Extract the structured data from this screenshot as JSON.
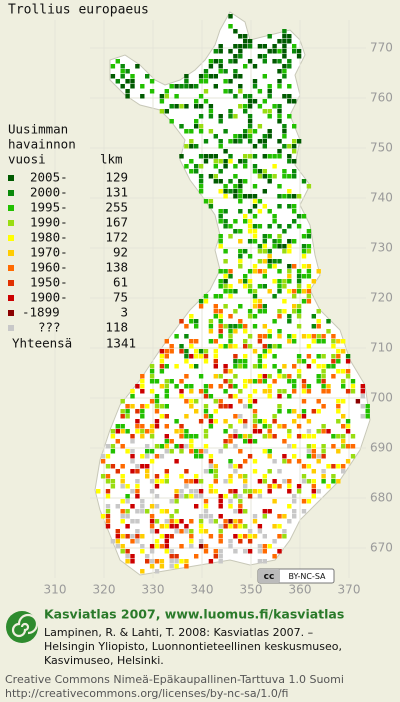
{
  "title": "Trollius europaeus",
  "legend": {
    "heading": [
      "Uusimman",
      "havainnon",
      "vuosi"
    ],
    "count_heading": "lkm",
    "items": [
      {
        "label": "2005-",
        "count": 129,
        "color": "#005a00"
      },
      {
        "label": "2000-",
        "count": 131,
        "color": "#0a8a0a"
      },
      {
        "label": "1995-",
        "count": 255,
        "color": "#22c000"
      },
      {
        "label": "1990-",
        "count": 167,
        "color": "#99dd11"
      },
      {
        "label": "1980-",
        "count": 172,
        "color": "#ffff00"
      },
      {
        "label": "1970-",
        "count": 92,
        "color": "#ffcc00"
      },
      {
        "label": "1960-",
        "count": 138,
        "color": "#ff6a00"
      },
      {
        "label": "1950-",
        "count": 61,
        "color": "#e03000"
      },
      {
        "label": "1900-",
        "count": 75,
        "color": "#cc0000"
      },
      {
        "label": "-1899",
        "count": 3,
        "color": "#8a0000"
      },
      {
        "label": "???",
        "count": 118,
        "color": "#c8c8c8"
      }
    ],
    "total_label": "Yhteensä",
    "total": 1341
  },
  "map": {
    "y_labels": [
      770,
      760,
      750,
      740,
      730,
      720,
      710,
      700,
      690,
      680,
      670
    ],
    "x_labels": [
      310,
      320,
      330,
      340,
      350,
      360,
      370
    ]
  },
  "license_badge": {
    "cc": "cc",
    "terms": "BY-NC-SA"
  },
  "footer": {
    "site": "Kasviatlas 2007, www.luomus.fi/kasviatlas",
    "citation": [
      "Lampinen, R. & Lahti, T. 2008: Kasviatlas 2007. –",
      "Helsingin Yliopisto, Luonnontieteellinen keskusmuseo,",
      "Kasvimuseo, Helsinki."
    ],
    "license": [
      "Creative Commons Nimeä-Epäkaupallinen-Tarttuva 1.0 Suomi",
      "http://creativecommons.org/licenses/by-nc-sa/1.0/fi"
    ]
  }
}
